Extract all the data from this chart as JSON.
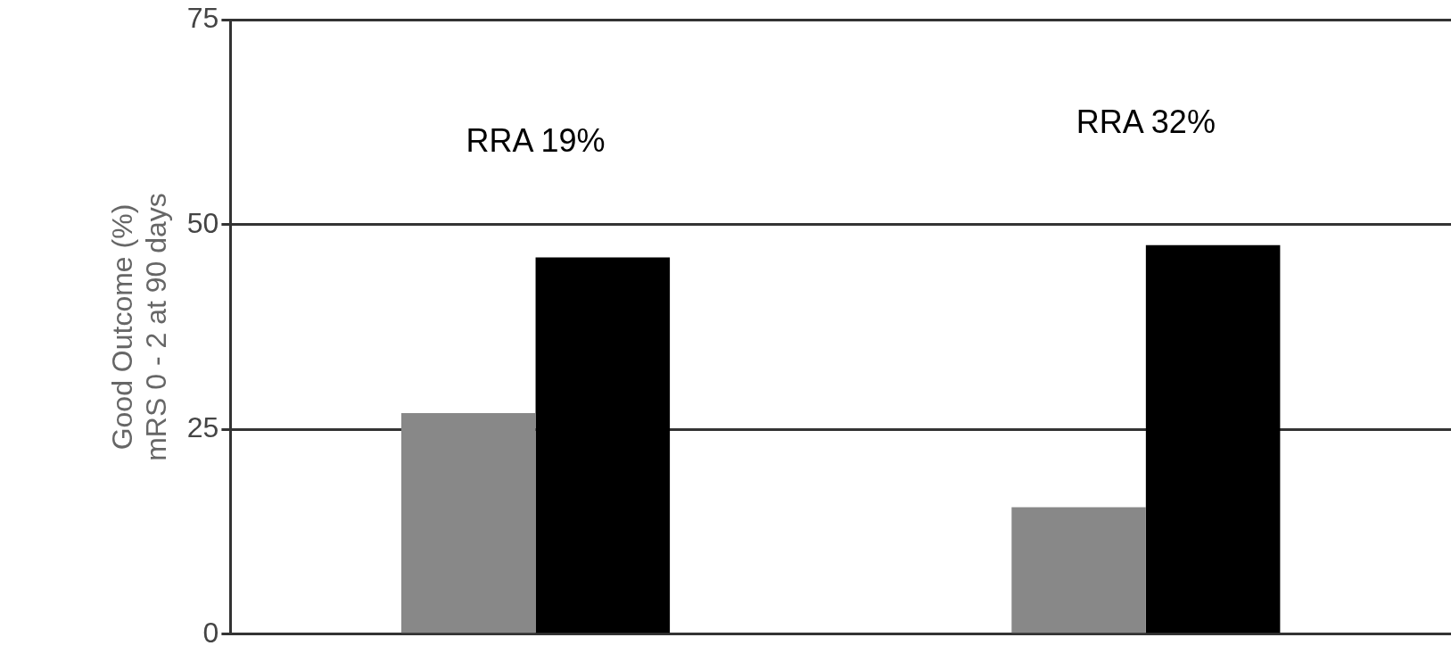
{
  "chart_data": {
    "type": "bar",
    "ylabel": "Good Outcome (%)\nmRS 0 - 2 at 90 days",
    "categories": [
      null,
      null
    ],
    "series": [
      {
        "color": "#888888",
        "values": [
          27,
          15.5
        ]
      },
      {
        "color": "#000000",
        "values": [
          46,
          47.5
        ]
      }
    ],
    "ylim": [
      0,
      75
    ],
    "yticks": [
      0,
      25,
      50,
      75
    ],
    "grid": "y",
    "legend": false,
    "annotations": [
      "RRA 19%",
      "RRA 32%"
    ]
  }
}
